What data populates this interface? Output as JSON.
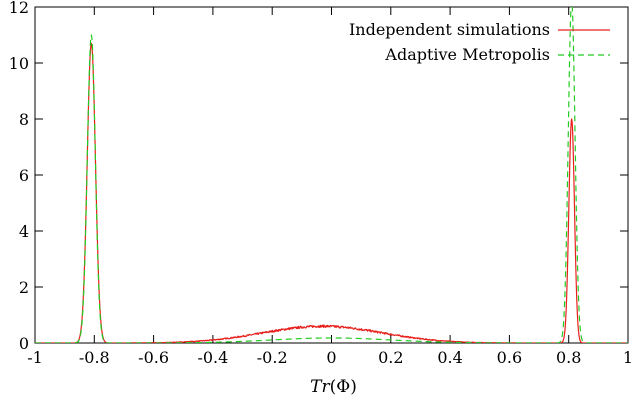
{
  "chart_data": {
    "type": "line",
    "title": "",
    "xlabel_parts": [
      "Tr",
      "(Φ)"
    ],
    "xlabel": "Tr(Φ)",
    "ylabel": "",
    "xlim": [
      -1,
      1
    ],
    "ylim": [
      0,
      12
    ],
    "x_ticks": [
      -1,
      -0.8,
      -0.6,
      -0.4,
      -0.2,
      0,
      0.2,
      0.4,
      0.6,
      0.8,
      1
    ],
    "x_tick_labels": [
      "-1",
      "-0.8",
      "-0.6",
      "-0.4",
      "-0.2",
      "0",
      "0.2",
      "0.4",
      "0.6",
      "0.8",
      "1"
    ],
    "y_ticks": [
      0,
      2,
      4,
      6,
      8,
      10,
      12
    ],
    "y_tick_labels": [
      "0",
      "2",
      "4",
      "6",
      "8",
      "10",
      "12"
    ],
    "grid": false,
    "legend_position": "top-right",
    "series": [
      {
        "name": "Independent simulations",
        "color": "#e8201c",
        "dash": "solid",
        "peaks": [
          {
            "center": -0.81,
            "height": 10.7,
            "width": 0.014
          },
          {
            "center": 0.81,
            "height": 8.0,
            "width": 0.0095
          }
        ],
        "broad": {
          "center": -0.03,
          "height": 0.6,
          "width": 0.2
        },
        "noise": 0.06
      },
      {
        "name": "Adaptive Metropolis",
        "color": "#22cc22",
        "dash": "dashed",
        "peaks": [
          {
            "center": -0.81,
            "height": 11.0,
            "width": 0.0135
          },
          {
            "center": 0.81,
            "height": 12.2,
            "width": 0.0115
          }
        ],
        "broad": {
          "center": 0.0,
          "height": 0.18,
          "width": 0.2
        },
        "noise": 0.0
      }
    ]
  }
}
